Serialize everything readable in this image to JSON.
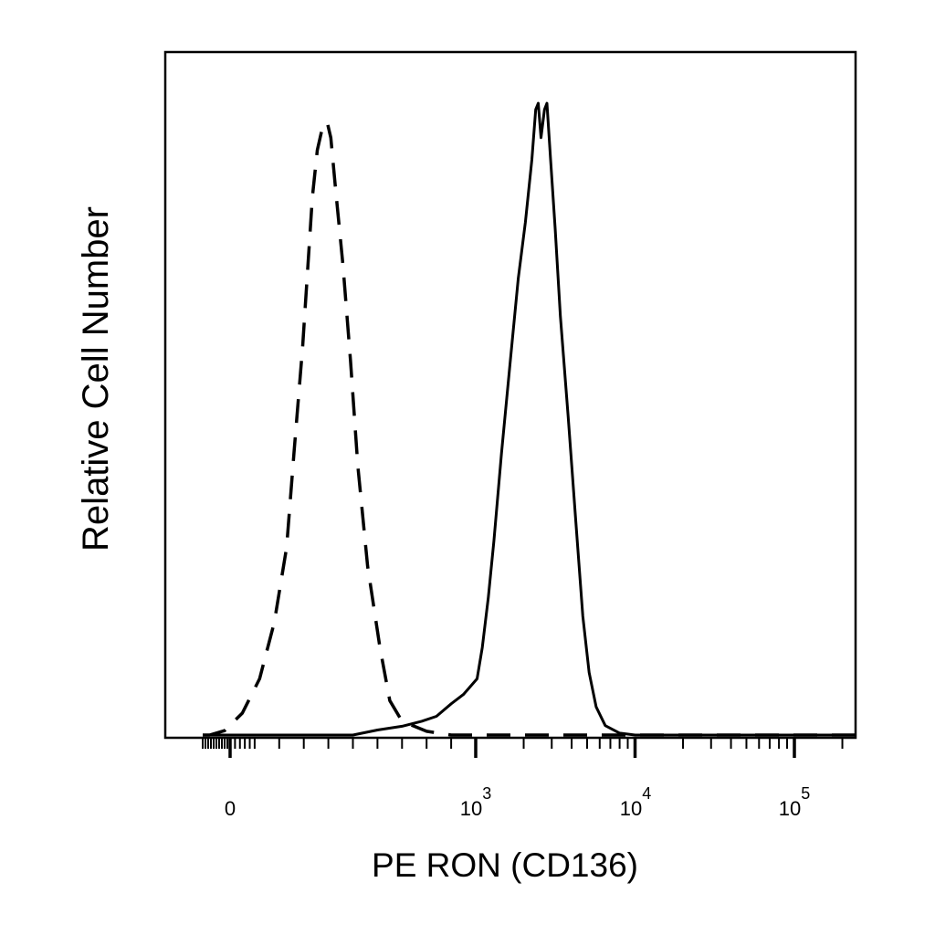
{
  "chart_data": {
    "type": "line",
    "title": "",
    "xlabel": "PE  RON (CD136)",
    "ylabel": "Relative Cell Number",
    "x_scale": "biexponential",
    "xlim": [
      -200,
      250000
    ],
    "ylim": [
      0,
      100
    ],
    "grid": false,
    "legend": "none",
    "x_ticks": [
      {
        "value": 0,
        "label": "0"
      },
      {
        "value": 1000,
        "base": "10",
        "exp": "3"
      },
      {
        "value": 10000,
        "base": "10",
        "exp": "4"
      },
      {
        "value": 100000,
        "base": "10",
        "exp": "5"
      }
    ],
    "series": [
      {
        "style": "dashed",
        "color": "#000000",
        "points": [
          [
            -200,
            0
          ],
          [
            -150,
            0
          ],
          [
            -40,
            0.7
          ],
          [
            50,
            3.5
          ],
          [
            120,
            9
          ],
          [
            180,
            18
          ],
          [
            230,
            30
          ],
          [
            260,
            45
          ],
          [
            295,
            62
          ],
          [
            320,
            77
          ],
          [
            335,
            86
          ],
          [
            355,
            93.5
          ],
          [
            375,
            97
          ],
          [
            395,
            98
          ],
          [
            410,
            95.5
          ],
          [
            430,
            87
          ],
          [
            460,
            75
          ],
          [
            490,
            60
          ],
          [
            520,
            43
          ],
          [
            560,
            27
          ],
          [
            610,
            14
          ],
          [
            650,
            5.5
          ],
          [
            700,
            2.2
          ],
          [
            800,
            0.6
          ],
          [
            900,
            0
          ],
          [
            250000,
            0
          ]
        ]
      },
      {
        "style": "solid",
        "color": "#000000",
        "points": [
          [
            -200,
            0
          ],
          [
            500,
            0
          ],
          [
            600,
            0.8
          ],
          [
            700,
            1.4
          ],
          [
            780,
            2.2
          ],
          [
            840,
            3
          ],
          [
            900,
            5
          ],
          [
            950,
            6.5
          ],
          [
            1020,
            9
          ],
          [
            1100,
            14
          ],
          [
            1200,
            22
          ],
          [
            1300,
            31
          ],
          [
            1450,
            45
          ],
          [
            1650,
            60
          ],
          [
            1850,
            73
          ],
          [
            2050,
            82
          ],
          [
            2250,
            92
          ],
          [
            2380,
            100
          ],
          [
            2470,
            101
          ],
          [
            2570,
            95.5
          ],
          [
            2700,
            100
          ],
          [
            2800,
            101
          ],
          [
            2950,
            92
          ],
          [
            3150,
            81
          ],
          [
            3400,
            67
          ],
          [
            3800,
            51
          ],
          [
            4250,
            34
          ],
          [
            4700,
            19
          ],
          [
            5150,
            10
          ],
          [
            5700,
            4.5
          ],
          [
            6500,
            1.5
          ],
          [
            8000,
            0.3
          ],
          [
            10000,
            0
          ],
          [
            250000,
            0
          ]
        ]
      }
    ]
  }
}
